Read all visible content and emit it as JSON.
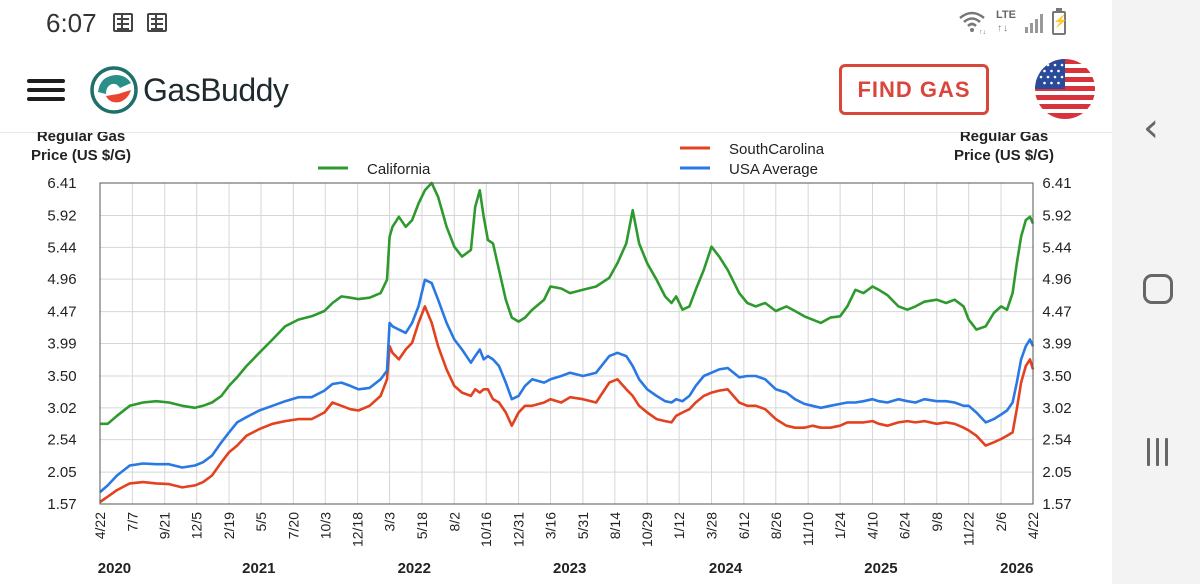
{
  "status_bar": {
    "time": "6:07",
    "lte": "LTE",
    "lte_arrows": "↑↓",
    "icons": [
      "note-icon",
      "note-icon",
      "wifi-icon",
      "signal-icon",
      "battery-charging-icon"
    ]
  },
  "header": {
    "app_name": "GasBuddy",
    "find_gas_label": "FIND GAS",
    "icons": [
      "menu-icon",
      "gasbuddy-logo",
      "us-flag-icon"
    ]
  },
  "android_nav": {
    "icons": [
      "back-icon",
      "home-icon",
      "recents-icon"
    ]
  },
  "colors": {
    "california": "#2e9a2e",
    "south_carolina": "#e2421f",
    "usa_average": "#2a78e4",
    "find_gas": "#d9463b"
  },
  "chart_data": {
    "type": "line",
    "y_axis_label_left": [
      "Regular Gas",
      "Price (US $/G)"
    ],
    "y_axis_label_right": [
      "Regular Gas",
      "Price (US $/G)"
    ],
    "yticks": [
      "6.41",
      "5.92",
      "5.44",
      "4.96",
      "4.47",
      "3.99",
      "3.50",
      "3.02",
      "2.54",
      "2.05",
      "1.57"
    ],
    "ylim": [
      1.57,
      6.41
    ],
    "xlim": [
      "2020-04-22",
      "2026-04-22"
    ],
    "xticks": [
      "4/22",
      "7/7",
      "9/21",
      "12/5",
      "2/19",
      "5/5",
      "7/20",
      "10/3",
      "12/18",
      "3/3",
      "5/18",
      "8/2",
      "10/16",
      "12/31",
      "3/16",
      "5/31",
      "8/14",
      "10/29",
      "1/12",
      "3/28",
      "6/12",
      "8/26",
      "11/10",
      "1/24",
      "4/10",
      "6/24",
      "9/8",
      "11/22",
      "2/6",
      "4/22"
    ],
    "xtick_dates": [
      "2020-04-22",
      "2020-07-07",
      "2020-09-21",
      "2020-12-05",
      "2021-02-19",
      "2021-05-05",
      "2021-07-20",
      "2021-10-03",
      "2021-12-18",
      "2022-03-03",
      "2022-05-18",
      "2022-08-02",
      "2022-10-16",
      "2022-12-31",
      "2023-03-16",
      "2023-05-31",
      "2023-08-14",
      "2023-10-29",
      "2024-01-12",
      "2024-03-28",
      "2024-06-12",
      "2024-08-26",
      "2024-11-10",
      "2025-01-24",
      "2025-04-10",
      "2025-06-24",
      "2025-09-08",
      "2025-11-22",
      "2026-02-06",
      "2026-04-22"
    ],
    "years": [
      {
        "label": "2020",
        "date": "2020-05-26"
      },
      {
        "label": "2021",
        "date": "2021-04-30"
      },
      {
        "label": "2022",
        "date": "2022-04-30"
      },
      {
        "label": "2023",
        "date": "2023-04-30"
      },
      {
        "label": "2024",
        "date": "2024-04-30"
      },
      {
        "label": "2025",
        "date": "2025-04-30"
      },
      {
        "label": "2026",
        "date": "2026-03-15"
      }
    ],
    "grid": true,
    "legend": {
      "position": "top",
      "items": [
        "California",
        "SouthCarolina",
        "USA Average"
      ]
    },
    "series": [
      {
        "name": "California",
        "x": [
          "2020-04-22",
          "2020-05-10",
          "2020-06-01",
          "2020-07-01",
          "2020-08-01",
          "2020-09-01",
          "2020-10-01",
          "2020-11-01",
          "2020-12-01",
          "2020-12-20",
          "2021-01-10",
          "2021-02-01",
          "2021-02-19",
          "2021-03-10",
          "2021-04-01",
          "2021-05-01",
          "2021-06-01",
          "2021-07-01",
          "2021-08-01",
          "2021-09-01",
          "2021-10-01",
          "2021-10-20",
          "2021-11-10",
          "2021-12-01",
          "2021-12-20",
          "2022-01-15",
          "2022-02-10",
          "2022-02-25",
          "2022-03-03",
          "2022-03-10",
          "2022-03-25",
          "2022-04-10",
          "2022-04-25",
          "2022-05-10",
          "2022-05-25",
          "2022-06-10",
          "2022-06-25",
          "2022-07-15",
          "2022-08-02",
          "2022-08-20",
          "2022-09-10",
          "2022-09-20",
          "2022-10-01",
          "2022-10-10",
          "2022-10-20",
          "2022-11-01",
          "2022-11-15",
          "2022-12-01",
          "2022-12-15",
          "2022-12-31",
          "2023-01-15",
          "2023-02-01",
          "2023-03-01",
          "2023-03-16",
          "2023-04-10",
          "2023-05-01",
          "2023-05-31",
          "2023-07-01",
          "2023-08-01",
          "2023-08-20",
          "2023-09-10",
          "2023-09-25",
          "2023-10-10",
          "2023-10-29",
          "2023-11-20",
          "2023-12-10",
          "2023-12-25",
          "2024-01-05",
          "2024-01-20",
          "2024-02-05",
          "2024-02-20",
          "2024-03-10",
          "2024-03-28",
          "2024-04-15",
          "2024-05-05",
          "2024-06-01",
          "2024-06-20",
          "2024-07-10",
          "2024-08-01",
          "2024-08-26",
          "2024-09-20",
          "2024-10-10",
          "2024-11-01",
          "2024-11-20",
          "2024-12-10",
          "2025-01-01",
          "2025-01-24",
          "2025-02-10",
          "2025-03-01",
          "2025-03-20",
          "2025-04-10",
          "2025-04-25",
          "2025-05-15",
          "2025-06-10",
          "2025-07-01",
          "2025-07-20",
          "2025-08-10",
          "2025-09-08",
          "2025-09-30",
          "2025-10-20",
          "2025-11-10",
          "2025-11-22",
          "2025-12-10",
          "2026-01-01",
          "2026-01-20",
          "2026-02-06",
          "2026-02-20",
          "2026-03-05",
          "2026-03-15",
          "2026-03-25",
          "2026-04-05",
          "2026-04-15",
          "2026-04-22"
        ],
        "values": [
          2.78,
          2.78,
          2.9,
          3.05,
          3.1,
          3.12,
          3.1,
          3.05,
          3.02,
          3.05,
          3.1,
          3.2,
          3.35,
          3.48,
          3.65,
          3.85,
          4.05,
          4.25,
          4.35,
          4.4,
          4.48,
          4.6,
          4.7,
          4.68,
          4.66,
          4.68,
          4.75,
          4.95,
          5.6,
          5.75,
          5.9,
          5.75,
          5.85,
          6.1,
          6.3,
          6.41,
          6.2,
          5.75,
          5.45,
          5.3,
          5.4,
          6.05,
          6.3,
          5.9,
          5.55,
          5.5,
          5.1,
          4.65,
          4.38,
          4.32,
          4.38,
          4.5,
          4.65,
          4.85,
          4.82,
          4.75,
          4.8,
          4.85,
          4.98,
          5.2,
          5.5,
          6.0,
          5.5,
          5.2,
          4.95,
          4.7,
          4.6,
          4.7,
          4.5,
          4.55,
          4.8,
          5.1,
          5.45,
          5.3,
          5.1,
          4.75,
          4.6,
          4.55,
          4.6,
          4.48,
          4.55,
          4.48,
          4.4,
          4.35,
          4.3,
          4.38,
          4.4,
          4.55,
          4.8,
          4.75,
          4.85,
          4.8,
          4.72,
          4.55,
          4.5,
          4.55,
          4.62,
          4.65,
          4.6,
          4.65,
          4.55,
          4.35,
          4.2,
          4.25,
          4.45,
          4.55,
          4.5,
          4.75,
          5.2,
          5.6,
          5.85,
          5.9,
          5.8
        ]
      },
      {
        "name": "SouthCarolina",
        "x": [
          "2020-04-22",
          "2020-05-10",
          "2020-06-01",
          "2020-07-01",
          "2020-08-01",
          "2020-09-01",
          "2020-10-01",
          "2020-11-01",
          "2020-12-01",
          "2020-12-20",
          "2021-01-10",
          "2021-02-01",
          "2021-02-19",
          "2021-03-10",
          "2021-04-01",
          "2021-05-01",
          "2021-06-01",
          "2021-07-01",
          "2021-08-01",
          "2021-09-01",
          "2021-10-01",
          "2021-10-20",
          "2021-11-10",
          "2021-12-01",
          "2021-12-20",
          "2022-01-15",
          "2022-02-10",
          "2022-02-25",
          "2022-03-03",
          "2022-03-10",
          "2022-03-25",
          "2022-04-10",
          "2022-04-25",
          "2022-05-10",
          "2022-05-25",
          "2022-06-10",
          "2022-06-25",
          "2022-07-15",
          "2022-08-02",
          "2022-08-20",
          "2022-09-10",
          "2022-09-20",
          "2022-10-01",
          "2022-10-10",
          "2022-10-20",
          "2022-11-01",
          "2022-11-15",
          "2022-12-01",
          "2022-12-15",
          "2022-12-31",
          "2023-01-15",
          "2023-02-01",
          "2023-03-01",
          "2023-03-16",
          "2023-04-10",
          "2023-05-01",
          "2023-05-31",
          "2023-07-01",
          "2023-08-01",
          "2023-08-20",
          "2023-09-10",
          "2023-09-25",
          "2023-10-10",
          "2023-10-29",
          "2023-11-20",
          "2023-12-10",
          "2023-12-25",
          "2024-01-05",
          "2024-01-20",
          "2024-02-05",
          "2024-02-20",
          "2024-03-10",
          "2024-03-28",
          "2024-04-15",
          "2024-05-05",
          "2024-06-01",
          "2024-06-20",
          "2024-07-10",
          "2024-08-01",
          "2024-08-26",
          "2024-09-20",
          "2024-10-10",
          "2024-11-01",
          "2024-11-20",
          "2024-12-10",
          "2025-01-01",
          "2025-01-24",
          "2025-02-10",
          "2025-03-01",
          "2025-03-20",
          "2025-04-10",
          "2025-04-25",
          "2025-05-15",
          "2025-06-10",
          "2025-07-01",
          "2025-07-20",
          "2025-08-10",
          "2025-09-08",
          "2025-09-30",
          "2025-10-20",
          "2025-11-10",
          "2025-11-22",
          "2025-12-10",
          "2026-01-01",
          "2026-01-20",
          "2026-02-06",
          "2026-02-20",
          "2026-03-05",
          "2026-03-15",
          "2026-03-25",
          "2026-04-05",
          "2026-04-15",
          "2026-04-22"
        ],
        "values": [
          1.6,
          1.68,
          1.78,
          1.88,
          1.9,
          1.88,
          1.87,
          1.82,
          1.85,
          1.9,
          2.0,
          2.2,
          2.35,
          2.45,
          2.6,
          2.7,
          2.78,
          2.82,
          2.85,
          2.85,
          2.95,
          3.1,
          3.05,
          3.0,
          2.98,
          3.05,
          3.2,
          3.45,
          3.95,
          3.85,
          3.75,
          3.9,
          4.0,
          4.3,
          4.55,
          4.3,
          3.95,
          3.6,
          3.35,
          3.25,
          3.2,
          3.3,
          3.25,
          3.3,
          3.3,
          3.15,
          3.1,
          2.95,
          2.75,
          2.95,
          3.05,
          3.05,
          3.1,
          3.15,
          3.1,
          3.18,
          3.15,
          3.1,
          3.4,
          3.45,
          3.3,
          3.2,
          3.05,
          2.95,
          2.85,
          2.82,
          2.8,
          2.9,
          2.95,
          3.0,
          3.1,
          3.2,
          3.25,
          3.28,
          3.3,
          3.1,
          3.05,
          3.05,
          3.0,
          2.85,
          2.75,
          2.72,
          2.72,
          2.75,
          2.72,
          2.72,
          2.75,
          2.8,
          2.8,
          2.8,
          2.82,
          2.78,
          2.75,
          2.8,
          2.82,
          2.8,
          2.82,
          2.78,
          2.8,
          2.78,
          2.72,
          2.68,
          2.6,
          2.45,
          2.5,
          2.55,
          2.6,
          2.65,
          3.0,
          3.4,
          3.65,
          3.75,
          3.6
        ]
      },
      {
        "name": "USA Average",
        "x": [
          "2020-04-22",
          "2020-05-10",
          "2020-06-01",
          "2020-07-01",
          "2020-08-01",
          "2020-09-01",
          "2020-10-01",
          "2020-11-01",
          "2020-12-01",
          "2020-12-20",
          "2021-01-10",
          "2021-02-01",
          "2021-02-19",
          "2021-03-10",
          "2021-04-01",
          "2021-05-01",
          "2021-06-01",
          "2021-07-01",
          "2021-08-01",
          "2021-09-01",
          "2021-10-01",
          "2021-10-20",
          "2021-11-10",
          "2021-12-01",
          "2021-12-20",
          "2022-01-15",
          "2022-02-10",
          "2022-02-25",
          "2022-03-03",
          "2022-03-10",
          "2022-03-25",
          "2022-04-10",
          "2022-04-25",
          "2022-05-10",
          "2022-05-25",
          "2022-06-10",
          "2022-06-25",
          "2022-07-15",
          "2022-08-02",
          "2022-08-20",
          "2022-09-10",
          "2022-09-20",
          "2022-10-01",
          "2022-10-10",
          "2022-10-20",
          "2022-11-01",
          "2022-11-15",
          "2022-12-01",
          "2022-12-15",
          "2022-12-31",
          "2023-01-15",
          "2023-02-01",
          "2023-03-01",
          "2023-03-16",
          "2023-04-10",
          "2023-05-01",
          "2023-05-31",
          "2023-07-01",
          "2023-08-01",
          "2023-08-20",
          "2023-09-10",
          "2023-09-25",
          "2023-10-10",
          "2023-10-29",
          "2023-11-20",
          "2023-12-10",
          "2023-12-25",
          "2024-01-05",
          "2024-01-20",
          "2024-02-05",
          "2024-02-20",
          "2024-03-10",
          "2024-03-28",
          "2024-04-15",
          "2024-05-05",
          "2024-06-01",
          "2024-06-20",
          "2024-07-10",
          "2024-08-01",
          "2024-08-26",
          "2024-09-20",
          "2024-10-10",
          "2024-11-01",
          "2024-11-20",
          "2024-12-10",
          "2025-01-01",
          "2025-01-24",
          "2025-02-10",
          "2025-03-01",
          "2025-03-20",
          "2025-04-10",
          "2025-04-25",
          "2025-05-15",
          "2025-06-10",
          "2025-07-01",
          "2025-07-20",
          "2025-08-10",
          "2025-09-08",
          "2025-09-30",
          "2025-10-20",
          "2025-11-10",
          "2025-11-22",
          "2025-12-10",
          "2026-01-01",
          "2026-01-20",
          "2026-02-06",
          "2026-02-20",
          "2026-03-05",
          "2026-03-15",
          "2026-03-25",
          "2026-04-05",
          "2026-04-15",
          "2026-04-22"
        ],
        "values": [
          1.75,
          1.85,
          2.0,
          2.15,
          2.18,
          2.17,
          2.17,
          2.12,
          2.15,
          2.2,
          2.3,
          2.5,
          2.65,
          2.8,
          2.88,
          2.98,
          3.05,
          3.12,
          3.18,
          3.18,
          3.28,
          3.38,
          3.4,
          3.35,
          3.3,
          3.32,
          3.45,
          3.58,
          4.3,
          4.25,
          4.2,
          4.15,
          4.3,
          4.55,
          4.95,
          4.9,
          4.65,
          4.3,
          4.05,
          3.9,
          3.7,
          3.8,
          3.9,
          3.75,
          3.8,
          3.75,
          3.65,
          3.4,
          3.15,
          3.2,
          3.35,
          3.45,
          3.4,
          3.45,
          3.5,
          3.55,
          3.5,
          3.55,
          3.8,
          3.85,
          3.8,
          3.65,
          3.45,
          3.3,
          3.2,
          3.12,
          3.1,
          3.15,
          3.12,
          3.2,
          3.35,
          3.5,
          3.55,
          3.6,
          3.62,
          3.48,
          3.5,
          3.5,
          3.45,
          3.3,
          3.25,
          3.15,
          3.08,
          3.05,
          3.02,
          3.05,
          3.08,
          3.1,
          3.1,
          3.12,
          3.15,
          3.12,
          3.1,
          3.15,
          3.12,
          3.1,
          3.15,
          3.12,
          3.12,
          3.1,
          3.05,
          3.05,
          2.95,
          2.8,
          2.85,
          2.92,
          2.98,
          3.1,
          3.4,
          3.75,
          3.95,
          4.05,
          3.95
        ]
      }
    ]
  }
}
